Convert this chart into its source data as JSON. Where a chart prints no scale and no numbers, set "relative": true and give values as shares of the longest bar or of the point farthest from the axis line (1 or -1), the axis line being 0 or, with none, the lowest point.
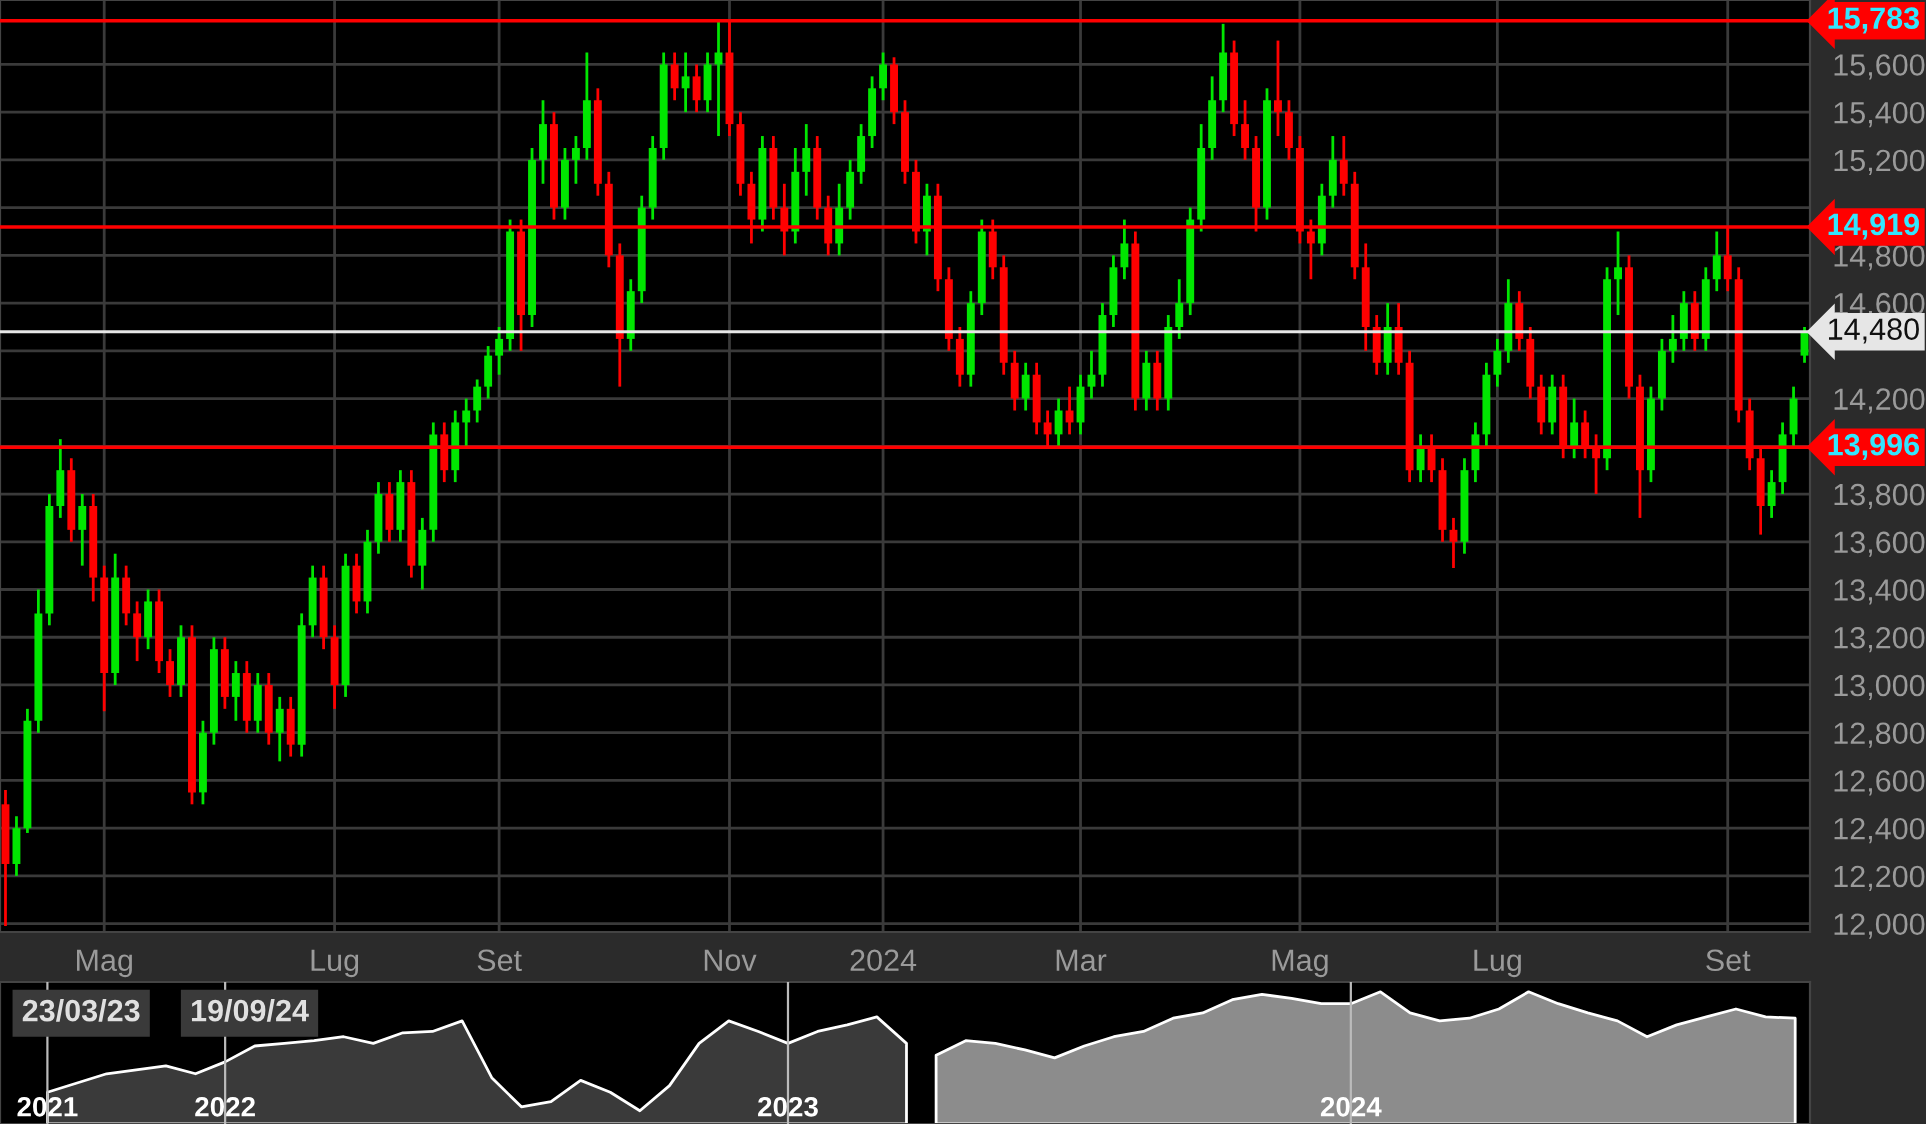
{
  "chart_data": [
    {
      "type": "candlestick",
      "categories": [
        null,
        null,
        null,
        null,
        null,
        null,
        null,
        null,
        null,
        "Mag",
        null,
        null,
        null,
        null,
        null,
        null,
        null,
        null,
        null,
        null,
        null,
        null,
        null,
        null,
        null,
        null,
        null,
        null,
        null,
        null,
        "Lug",
        null,
        null,
        null,
        null,
        null,
        null,
        null,
        null,
        null,
        null,
        null,
        null,
        null,
        null,
        "Set",
        null,
        null,
        null,
        null,
        null,
        null,
        null,
        null,
        null,
        null,
        null,
        null,
        null,
        null,
        null,
        null,
        null,
        null,
        null,
        null,
        "Nov",
        null,
        null,
        null,
        null,
        null,
        null,
        null,
        null,
        null,
        null,
        null,
        null,
        null,
        "2024",
        null,
        null,
        null,
        null,
        null,
        null,
        null,
        null,
        null,
        null,
        null,
        null,
        null,
        null,
        null,
        null,
        null,
        "Mar",
        null,
        null,
        null,
        null,
        null,
        null,
        null,
        null,
        null,
        null,
        null,
        null,
        null,
        null,
        null,
        null,
        null,
        null,
        null,
        "Mag",
        null,
        null,
        null,
        null,
        null,
        null,
        null,
        null,
        null,
        null,
        null,
        null,
        null,
        null,
        null,
        null,
        null,
        "Lug",
        null,
        null,
        null,
        null,
        null,
        null,
        null,
        null,
        null,
        null,
        null,
        null,
        null,
        null,
        null,
        null,
        null,
        null,
        null,
        null,
        "Set",
        null,
        null,
        null,
        null,
        null,
        null,
        null
      ],
      "ohlc": [
        [
          12500,
          12560,
          11990,
          12250
        ],
        [
          12250,
          12450,
          12200,
          12400
        ],
        [
          12400,
          12900,
          12380,
          12850
        ],
        [
          12850,
          13400,
          12800,
          13300
        ],
        [
          13300,
          13800,
          13250,
          13750
        ],
        [
          13750,
          14030,
          13700,
          13900
        ],
        [
          13900,
          13950,
          13600,
          13650
        ],
        [
          13650,
          13800,
          13500,
          13750
        ],
        [
          13750,
          13800,
          13350,
          13450
        ],
        [
          13450,
          13500,
          12890,
          13050
        ],
        [
          13050,
          13550,
          13000,
          13450
        ],
        [
          13450,
          13500,
          13250,
          13300
        ],
        [
          13300,
          13350,
          13100,
          13200
        ],
        [
          13200,
          13400,
          13150,
          13350
        ],
        [
          13350,
          13400,
          13050,
          13100
        ],
        [
          13100,
          13150,
          12950,
          13000
        ],
        [
          13000,
          13250,
          12950,
          13200
        ],
        [
          13200,
          13250,
          12500,
          12550
        ],
        [
          12550,
          12850,
          12500,
          12800
        ],
        [
          12800,
          13200,
          12750,
          13150
        ],
        [
          13150,
          13200,
          12900,
          12950
        ],
        [
          12950,
          13100,
          12850,
          13050
        ],
        [
          13050,
          13100,
          12800,
          12850
        ],
        [
          12850,
          13050,
          12800,
          13000
        ],
        [
          13000,
          13050,
          12750,
          12800
        ],
        [
          12800,
          12950,
          12680,
          12900
        ],
        [
          12900,
          12950,
          12700,
          12750
        ],
        [
          12750,
          13300,
          12700,
          13250
        ],
        [
          13250,
          13500,
          13200,
          13450
        ],
        [
          13450,
          13500,
          13150,
          13200
        ],
        [
          13200,
          13250,
          12900,
          13000
        ],
        [
          13000,
          13550,
          12950,
          13500
        ],
        [
          13500,
          13550,
          13300,
          13350
        ],
        [
          13350,
          13650,
          13300,
          13600
        ],
        [
          13600,
          13850,
          13550,
          13800
        ],
        [
          13800,
          13850,
          13600,
          13650
        ],
        [
          13650,
          13900,
          13600,
          13850
        ],
        [
          13850,
          13900,
          13450,
          13500
        ],
        [
          13500,
          13700,
          13400,
          13650
        ],
        [
          13650,
          14100,
          13600,
          14050
        ],
        [
          14050,
          14100,
          13850,
          13900
        ],
        [
          13900,
          14150,
          13850,
          14100
        ],
        [
          14100,
          14200,
          14000,
          14150
        ],
        [
          14150,
          14280,
          14100,
          14250
        ],
        [
          14250,
          14420,
          14200,
          14380
        ],
        [
          14380,
          14500,
          14300,
          14450
        ],
        [
          14450,
          14950,
          14400,
          14900
        ],
        [
          14900,
          14950,
          14400,
          14550
        ],
        [
          14550,
          15250,
          14500,
          15200
        ],
        [
          15200,
          15450,
          15100,
          15350
        ],
        [
          15350,
          15400,
          14950,
          15000
        ],
        [
          15000,
          15250,
          14950,
          15200
        ],
        [
          15200,
          15300,
          15100,
          15250
        ],
        [
          15250,
          15650,
          15200,
          15450
        ],
        [
          15450,
          15500,
          15050,
          15100
        ],
        [
          15100,
          15150,
          14750,
          14800
        ],
        [
          14800,
          14850,
          14250,
          14450
        ],
        [
          14450,
          14700,
          14400,
          14650
        ],
        [
          14650,
          15050,
          14600,
          15000
        ],
        [
          15000,
          15300,
          14950,
          15250
        ],
        [
          15250,
          15650,
          15200,
          15600
        ],
        [
          15600,
          15650,
          15450,
          15500
        ],
        [
          15500,
          15650,
          15400,
          15550
        ],
        [
          15550,
          15600,
          15400,
          15450
        ],
        [
          15450,
          15650,
          15400,
          15600
        ],
        [
          15600,
          15780,
          15300,
          15650
        ],
        [
          15650,
          15783,
          15300,
          15350
        ],
        [
          15350,
          15400,
          15050,
          15100
        ],
        [
          15100,
          15150,
          14850,
          14950
        ],
        [
          14950,
          15300,
          14900,
          15250
        ],
        [
          15250,
          15300,
          14950,
          15000
        ],
        [
          15000,
          15100,
          14800,
          14900
        ],
        [
          14900,
          15250,
          14850,
          15150
        ],
        [
          15150,
          15350,
          15050,
          15250
        ],
        [
          15250,
          15300,
          14950,
          15000
        ],
        [
          15000,
          15050,
          14800,
          14850
        ],
        [
          14850,
          15100,
          14800,
          15000
        ],
        [
          15000,
          15200,
          14950,
          15150
        ],
        [
          15150,
          15350,
          15100,
          15300
        ],
        [
          15300,
          15550,
          15250,
          15500
        ],
        [
          15500,
          15650,
          15450,
          15600
        ],
        [
          15600,
          15630,
          15350,
          15400
        ],
        [
          15400,
          15450,
          15100,
          15150
        ],
        [
          15150,
          15200,
          14850,
          14900
        ],
        [
          14900,
          15100,
          14800,
          15050
        ],
        [
          15050,
          15100,
          14650,
          14700
        ],
        [
          14700,
          14750,
          14400,
          14450
        ],
        [
          14450,
          14500,
          14250,
          14300
        ],
        [
          14300,
          14650,
          14250,
          14600
        ],
        [
          14600,
          14950,
          14550,
          14900
        ],
        [
          14900,
          14950,
          14700,
          14750
        ],
        [
          14750,
          14800,
          14300,
          14350
        ],
        [
          14350,
          14400,
          14150,
          14200
        ],
        [
          14200,
          14350,
          14150,
          14300
        ],
        [
          14300,
          14350,
          14050,
          14100
        ],
        [
          14100,
          14150,
          13996,
          14050
        ],
        [
          14050,
          14200,
          14000,
          14150
        ],
        [
          14150,
          14250,
          14050,
          14100
        ],
        [
          14100,
          14300,
          14050,
          14250
        ],
        [
          14250,
          14400,
          14200,
          14300
        ],
        [
          14300,
          14600,
          14250,
          14550
        ],
        [
          14550,
          14800,
          14500,
          14750
        ],
        [
          14750,
          14950,
          14700,
          14850
        ],
        [
          14850,
          14900,
          14150,
          14200
        ],
        [
          14200,
          14400,
          14150,
          14350
        ],
        [
          14350,
          14400,
          14150,
          14200
        ],
        [
          14200,
          14550,
          14150,
          14500
        ],
        [
          14500,
          14700,
          14450,
          14600
        ],
        [
          14600,
          15000,
          14550,
          14950
        ],
        [
          14950,
          15350,
          14900,
          15250
        ],
        [
          15250,
          15550,
          15200,
          15450
        ],
        [
          15450,
          15770,
          15400,
          15650
        ],
        [
          15650,
          15700,
          15300,
          15350
        ],
        [
          15350,
          15450,
          15200,
          15250
        ],
        [
          15250,
          15300,
          14900,
          15000
        ],
        [
          15000,
          15500,
          14950,
          15450
        ],
        [
          15450,
          15700,
          15300,
          15400
        ],
        [
          15400,
          15450,
          15200,
          15250
        ],
        [
          15250,
          15300,
          14850,
          14900
        ],
        [
          14900,
          14950,
          14700,
          14850
        ],
        [
          14850,
          15100,
          14800,
          15050
        ],
        [
          15050,
          15300,
          15000,
          15200
        ],
        [
          15200,
          15300,
          15050,
          15100
        ],
        [
          15100,
          15150,
          14700,
          14750
        ],
        [
          14750,
          14850,
          14400,
          14500
        ],
        [
          14500,
          14550,
          14300,
          14350
        ],
        [
          14350,
          14600,
          14300,
          14500
        ],
        [
          14500,
          14600,
          14300,
          14350
        ],
        [
          14350,
          14400,
          13850,
          13900
        ],
        [
          13900,
          14050,
          13850,
          14000
        ],
        [
          14000,
          14050,
          13850,
          13900
        ],
        [
          13900,
          13950,
          13600,
          13650
        ],
        [
          13650,
          13700,
          13490,
          13600
        ],
        [
          13600,
          13950,
          13550,
          13900
        ],
        [
          13900,
          14100,
          13850,
          14050
        ],
        [
          14050,
          14350,
          14000,
          14300
        ],
        [
          14300,
          14450,
          14250,
          14400
        ],
        [
          14400,
          14700,
          14350,
          14600
        ],
        [
          14600,
          14650,
          14400,
          14450
        ],
        [
          14450,
          14500,
          14200,
          14250
        ],
        [
          14250,
          14300,
          14050,
          14100
        ],
        [
          14100,
          14300,
          14050,
          14250
        ],
        [
          14250,
          14300,
          13950,
          14000
        ],
        [
          14000,
          14200,
          13950,
          14100
        ],
        [
          14100,
          14150,
          13950,
          14000
        ],
        [
          14000,
          14050,
          13800,
          13950
        ],
        [
          13950,
          14750,
          13900,
          14700
        ],
        [
          14700,
          14900,
          14550,
          14750
        ],
        [
          14750,
          14800,
          14200,
          14250
        ],
        [
          14250,
          14300,
          13700,
          13900
        ],
        [
          13900,
          14250,
          13850,
          14200
        ],
        [
          14200,
          14450,
          14150,
          14400
        ],
        [
          14400,
          14550,
          14350,
          14450
        ],
        [
          14450,
          14650,
          14400,
          14600
        ],
        [
          14600,
          14650,
          14400,
          14450
        ],
        [
          14450,
          14750,
          14400,
          14700
        ],
        [
          14700,
          14900,
          14650,
          14800
        ],
        [
          14800,
          14919,
          14650,
          14700
        ],
        [
          14700,
          14750,
          14100,
          14150
        ],
        [
          14150,
          14200,
          13900,
          13950
        ],
        [
          13950,
          14000,
          13630,
          13750
        ],
        [
          13750,
          13900,
          13700,
          13850
        ],
        [
          13850,
          14100,
          13800,
          14050
        ],
        [
          14050,
          14250,
          14000,
          14200
        ],
        [
          14380,
          14500,
          14350,
          14480
        ]
      ],
      "colors": [
        "#ff0000",
        "#00e600",
        "#00e600",
        "#00e600",
        "#00e600",
        "#00e600",
        "#ff0000",
        "#00e600",
        "#ff0000",
        "#ff0000",
        "#00e600",
        "#ff0000",
        "#ff0000",
        "#00e600",
        "#ff0000",
        "#ff0000",
        "#00e600",
        "#ff0000",
        "#00e600",
        "#00e600",
        "#ff0000",
        "#00e600",
        "#ff0000",
        "#00e600",
        "#ff0000",
        "#00e600",
        "#ff0000",
        "#00e600",
        "#00e600",
        "#ff0000",
        "#ff0000",
        "#00e600",
        "#ff0000",
        "#00e600",
        "#00e600",
        "#ff0000",
        "#00e600",
        "#ff0000",
        "#00e600",
        "#00e600",
        "#ff0000",
        "#00e600",
        "#00e600",
        "#00e600",
        "#00e600",
        "#00e600",
        "#00e600",
        "#ff0000",
        "#00e600",
        "#00e600",
        "#ff0000",
        "#00e600",
        "#00e600",
        "#00e600",
        "#ff0000",
        "#ff0000",
        "#ff0000",
        "#00e600",
        "#00e600",
        "#00e600",
        "#00e600",
        "#ff0000",
        "#00e600",
        "#ff0000",
        "#00e600",
        "#00e600",
        "#ff0000",
        "#ff0000",
        "#ff0000",
        "#00e600",
        "#ff0000",
        "#ff0000",
        "#00e600",
        "#00e600",
        "#ff0000",
        "#ff0000",
        "#00e600",
        "#00e600",
        "#00e600",
        "#00e600",
        "#00e600",
        "#ff0000",
        "#ff0000",
        "#ff0000",
        "#00e600",
        "#ff0000",
        "#ff0000",
        "#ff0000",
        "#00e600",
        "#00e600",
        "#ff0000",
        "#ff0000",
        "#ff0000",
        "#00e600",
        "#ff0000",
        "#ff0000",
        "#00e600",
        "#ff0000",
        "#00e600",
        "#00e600",
        "#00e600",
        "#00e600",
        "#00e600",
        "#ff0000",
        "#00e600",
        "#ff0000",
        "#00e600",
        "#00e600",
        "#00e600",
        "#00e600",
        "#00e600",
        "#00e600",
        "#ff0000",
        "#ff0000",
        "#ff0000",
        "#00e600",
        "#ff0000",
        "#ff0000",
        "#ff0000",
        "#ff0000",
        "#00e600",
        "#00e600",
        "#ff0000",
        "#ff0000",
        "#ff0000",
        "#ff0000",
        "#00e600",
        "#ff0000",
        "#ff0000",
        "#00e600",
        "#ff0000",
        "#ff0000",
        "#ff0000",
        "#00e600",
        "#00e600",
        "#00e600",
        "#00e600",
        "#00e600",
        "#ff0000",
        "#ff0000",
        "#ff0000",
        "#00e600",
        "#ff0000",
        "#00e600",
        "#ff0000",
        "#ff0000",
        "#00e600",
        "#00e600",
        "#ff0000",
        "#ff0000",
        "#00e600",
        "#00e600",
        "#00e600",
        "#00e600",
        "#ff0000",
        "#00e600",
        "#00e600",
        "#ff0000",
        "#ff0000",
        "#ff0000",
        "#ff0000",
        "#00e600",
        "#00e600",
        "#00e600",
        "#00e600"
      ],
      "ylim": [
        11965,
        15870
      ],
      "yticks": [
        {
          "value": 12000,
          "label": "12,000"
        },
        {
          "value": 12200,
          "label": "12,200"
        },
        {
          "value": 12400,
          "label": "12,400"
        },
        {
          "value": 12600,
          "label": "12,600"
        },
        {
          "value": 12800,
          "label": "12,800"
        },
        {
          "value": 13000,
          "label": "13,000"
        },
        {
          "value": 13200,
          "label": "13,200"
        },
        {
          "value": 13400,
          "label": "13,400"
        },
        {
          "value": 13600,
          "label": "13,600"
        },
        {
          "value": 13800,
          "label": "13,800"
        },
        {
          "value": 14000,
          "label": null
        },
        {
          "value": 14200,
          "label": "14,200"
        },
        {
          "value": 14400,
          "label": null
        },
        {
          "value": 14600,
          "label": "14,600"
        },
        {
          "value": 14800,
          "label": "14,800"
        },
        {
          "value": 15000,
          "label": null
        },
        {
          "value": 15200,
          "label": "15,200"
        },
        {
          "value": 15400,
          "label": "15,400"
        },
        {
          "value": 15600,
          "label": "15,600"
        }
      ],
      "grid": true,
      "ref_lines": [
        {
          "axis": "y",
          "value": 15783,
          "label": "15,783",
          "color": "#ff0000"
        },
        {
          "axis": "y",
          "value": 14919,
          "label": "14,919",
          "color": "#ff0000"
        },
        {
          "axis": "y",
          "value": 14480,
          "label": "14,480",
          "color": "#e6e6e6"
        },
        {
          "axis": "y",
          "value": 13996,
          "label": "13,996",
          "color": "#ff0000"
        }
      ]
    },
    {
      "type": "area",
      "relative": true,
      "categories": [
        "2021",
        null,
        null,
        null,
        null,
        null,
        "2022",
        null,
        null,
        null,
        null,
        null,
        null,
        null,
        null,
        null,
        null,
        null,
        null,
        null,
        null,
        null,
        null,
        null,
        null,
        "2023",
        null,
        null,
        null,
        null,
        null,
        null,
        null,
        null,
        null,
        null,
        null,
        null,
        null,
        null,
        null,
        null,
        null,
        null,
        "2024",
        null,
        null,
        null,
        null,
        null,
        null,
        null,
        null,
        null,
        null,
        null,
        null,
        null,
        null,
        null
      ],
      "series": [
        {
          "color": "#3a3a3a",
          "values": [
            0.24,
            0.31,
            0.38,
            0.41,
            0.44,
            0.38,
            0.47,
            0.59,
            0.61,
            0.63,
            0.66,
            0.61,
            0.69,
            0.7,
            0.78,
            0.35,
            0.13,
            0.17,
            0.33,
            0.24,
            0.1,
            0.29,
            0.61,
            0.78,
            0.7,
            0.61,
            0.7,
            0.75,
            0.81,
            0.61,
            null,
            null,
            null,
            null,
            null,
            null,
            null,
            null,
            null,
            null,
            null,
            null,
            null,
            null,
            null,
            null,
            null,
            null,
            null,
            null,
            null,
            null,
            null,
            null,
            null,
            null,
            null,
            null,
            null,
            null
          ]
        },
        {
          "color": "#8c8c8c",
          "values": [
            null,
            null,
            null,
            null,
            null,
            null,
            null,
            null,
            null,
            null,
            null,
            null,
            null,
            null,
            null,
            null,
            null,
            null,
            null,
            null,
            null,
            null,
            null,
            null,
            null,
            null,
            null,
            null,
            null,
            null,
            0.52,
            0.63,
            0.61,
            0.56,
            0.5,
            0.59,
            0.66,
            0.7,
            0.8,
            0.84,
            0.94,
            0.98,
            0.95,
            0.91,
            0.91,
            1,
            0.84,
            0.78,
            0.8,
            0.87,
            1,
            0.91,
            0.84,
            0.78,
            0.66,
            0.75,
            0.81,
            0.87,
            0.81,
            0.8
          ]
        }
      ],
      "grid": "x",
      "tick_labels": "x",
      "annotations": [
        "23/03/23",
        "19/09/24"
      ]
    }
  ]
}
